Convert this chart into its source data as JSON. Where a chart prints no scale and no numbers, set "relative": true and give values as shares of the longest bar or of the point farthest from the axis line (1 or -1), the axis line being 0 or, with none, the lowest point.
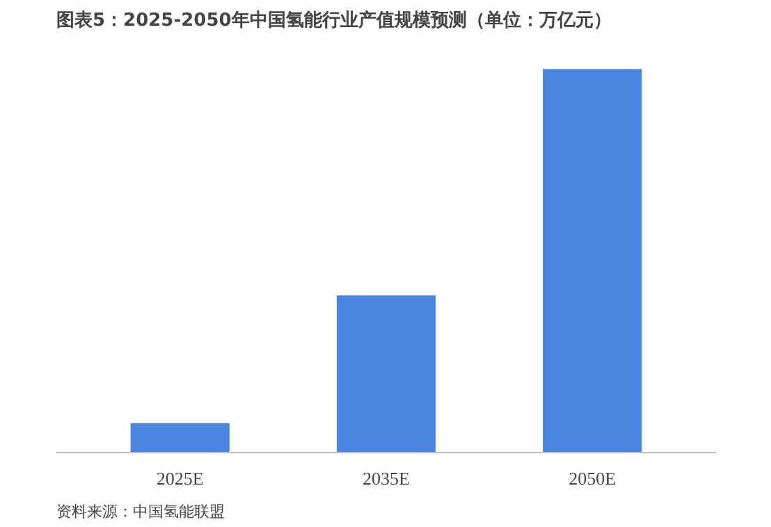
{
  "chart_data": {
    "type": "bar",
    "title": "图表5：2025-2050年中国氢能行业产值规模预测（单位：万亿元）",
    "categories": [
      "2025E",
      "2035E",
      "2050E"
    ],
    "relative": true,
    "values": [
      0.077,
      0.41,
      1
    ],
    "color": "#4a86e0",
    "annotations": [
      "资料来源：中国氢能联盟"
    ]
  }
}
